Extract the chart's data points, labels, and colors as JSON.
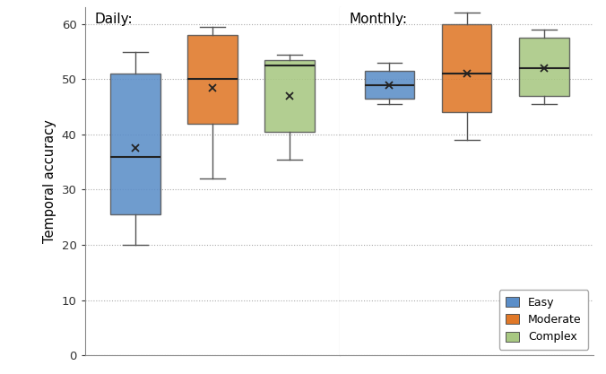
{
  "title_left": "Daily:",
  "title_right": "Monthly:",
  "ylabel": "Temporal accuracy",
  "ylim": [
    0,
    63
  ],
  "yticks": [
    0,
    10,
    20,
    30,
    40,
    50,
    60
  ],
  "colors": {
    "easy": "#5B8EC8",
    "moderate": "#E07828",
    "complex": "#A8C882"
  },
  "legend_labels": [
    "Easy",
    "Moderate",
    "Complex"
  ],
  "daily": {
    "easy": {
      "whislo": 20.0,
      "q1": 25.5,
      "med": 36.0,
      "q3": 51.0,
      "whishi": 55.0,
      "mean": 37.5
    },
    "moderate": {
      "whislo": 32.0,
      "q1": 42.0,
      "med": 50.0,
      "q3": 58.0,
      "whishi": 59.5,
      "mean": 48.5
    },
    "complex": {
      "whislo": 35.5,
      "q1": 40.5,
      "med": 52.5,
      "q3": 53.5,
      "whishi": 54.5,
      "mean": 47.0
    }
  },
  "monthly": {
    "easy": {
      "whislo": 45.5,
      "q1": 46.5,
      "med": 49.0,
      "q3": 51.5,
      "whishi": 53.0,
      "mean": 49.0
    },
    "moderate": {
      "whislo": 39.0,
      "q1": 44.0,
      "med": 51.0,
      "q3": 60.0,
      "whishi": 62.0,
      "mean": 51.0
    },
    "complex": {
      "whislo": 45.5,
      "q1": 47.0,
      "med": 52.0,
      "q3": 57.5,
      "whishi": 59.0,
      "mean": 52.0
    }
  }
}
